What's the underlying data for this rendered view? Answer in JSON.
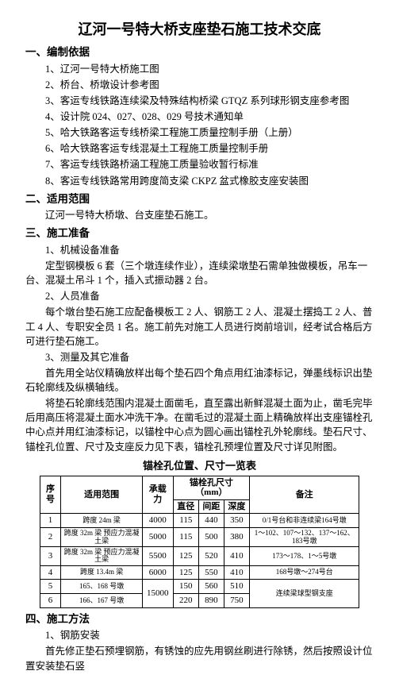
{
  "title": "辽河一号特大桥支座垫石施工技术交底",
  "s1": {
    "heading": "一、编制依据",
    "items": [
      "1、辽河一号特大桥施工图",
      "2、桥台、桥墩设计参考图",
      "3、客运专线铁路连续梁及特殊结构桥梁 GTQZ 系列球形钢支座参考图",
      "4、设计院 024、027、028、029 号技术通知单",
      "5、哈大铁路客运专线桥梁工程施工质量控制手册（上册）",
      "6、哈大铁路客运专线混凝土工程施工质量控制手册",
      "7、客运专线铁路桥涵工程施工质量验收暂行标准",
      "8、客运专线铁路常用跨度简支梁 CKPZ 盆式橡胶支座安装图"
    ]
  },
  "s2": {
    "heading": "二、适用范围",
    "body1": "辽河一号特大桥墩、台支座垫石施工。"
  },
  "s3": {
    "heading": "三、施工准备",
    "sub1": "1、机械设备准备",
    "body1": "定型钢模板 6 套（三个墩连续作业），连续梁墩垫石需单独做模板，吊车一台、混凝土吊斗 1 个，插入式振动器 2 台。",
    "sub2": "2、人员准备",
    "body2": "每个墩台垫石施工应配备模板工 2 人、钢筋工 2 人、混凝土摆捣工 2 人、普工 4 人、专职安全员 1 名。施工前先对施工人员进行岗前培训，经考试合格后方可进行垫石施工。",
    "sub3": "3、测量及其它准备",
    "body3a": "首先用全站仪精确放样出每个垫石四个角点用红油漆标记，弹墨线标识出垫石轮廓线及纵横轴线。",
    "body3b": "将垫石轮廓线范围内混凝土面凿毛，直至露出新鲜混凝土面为止，凿毛完毕后用高压将混凝土面水冲洗干净。在凿毛过的混凝土面上精确放样出支座锚栓孔中心点并用红油漆标记，以锚栓中心点为圆心画出锚栓孔外轮廓线。垫石尺寸、锚栓孔位置、尺寸及支座反力见下表，锚栓孔预埋位置及尺寸详见附图。"
  },
  "table": {
    "title": "锚栓孔位置、尺寸一览表",
    "headers": {
      "c0": "序号",
      "c1": "适用范围",
      "c2": "承载力",
      "c3_top": "锚栓孔尺寸（mm）",
      "c3a": "直径",
      "c3b": "间距",
      "c3c": "深度",
      "c4": "备注"
    },
    "rows": [
      {
        "n": "1",
        "scope": "跨度 24m\n梁",
        "cap": "4000",
        "d": "115",
        "gap": "440",
        "dep": "350",
        "rk": "0/1号台和非连续梁164号墩"
      },
      {
        "n": "2",
        "scope": "跨度 32m\n梁\n预应力混凝土梁",
        "cap": "5000",
        "d": "115",
        "gap": "500",
        "dep": "380",
        "rk": "1～102、107～132、137～162、183号墩"
      },
      {
        "n": "3",
        "scope": "跨度 32m\n梁 预应力混凝土梁",
        "cap": "5500",
        "d": "125",
        "gap": "520",
        "dep": "410",
        "rk": "173～178、1～5号墩"
      },
      {
        "n": "4",
        "scope": "跨度\n13.4m 梁",
        "cap": "6000",
        "d": "125",
        "gap": "550",
        "dep": "410",
        "rk": "168号墩～274号台"
      },
      {
        "n": "5",
        "scope": "165、168\n号墩",
        "cap": "15000",
        "d": "150",
        "gap": "560",
        "dep": "510",
        "rk": "连续梁球型钢支座"
      },
      {
        "n": "6",
        "scope": "166、167\n号墩",
        "cap": "15000",
        "d": "220",
        "gap": "890",
        "dep": "750",
        "rk": "连续梁球型钢支座"
      }
    ]
  },
  "s4": {
    "heading": "四、施工方法",
    "sub1": "1、钢筋安装",
    "body1": "首先修正垫石预埋钢筋，有锈蚀的应先用钢丝刷进行除锈，然后按照设计位置安装垫石竖"
  }
}
